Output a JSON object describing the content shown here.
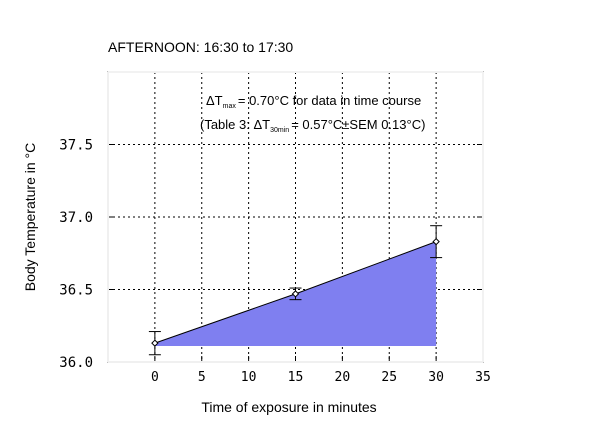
{
  "chart_data": {
    "type": "area",
    "title": "AFTERNOON: 16:30 to 17:30",
    "xlabel": "Time of exposure in minutes",
    "ylabel": "Body Temperature in °C",
    "xlim": [
      -5,
      35
    ],
    "ylim": [
      36.0,
      38.0
    ],
    "x_ticks": [
      0,
      5,
      10,
      15,
      20,
      25,
      30,
      35
    ],
    "y_ticks": [
      36.0,
      36.5,
      37.0,
      37.5
    ],
    "y_tick_labels": [
      "36.0",
      "36.5",
      "37.0",
      "37.5"
    ],
    "grid": true,
    "fill_color": "#7f7ff0",
    "series": [
      {
        "x": [
          0,
          15,
          30
        ],
        "y": [
          36.13,
          36.47,
          36.83
        ],
        "error_upper": [
          36.21,
          36.51,
          36.94
        ],
        "error_lower": [
          36.05,
          36.43,
          36.72
        ]
      }
    ],
    "area_baseline": 36.11,
    "annotations": {
      "line1": {
        "delta": "ΔT",
        "sub": "max",
        "rest": "= 0.70°C for data in time course"
      },
      "line2": {
        "prefix": "(Table 3: ΔT",
        "sub": "30min",
        "rest": "= 0.57°C±SEM 0.13°C)"
      }
    }
  }
}
